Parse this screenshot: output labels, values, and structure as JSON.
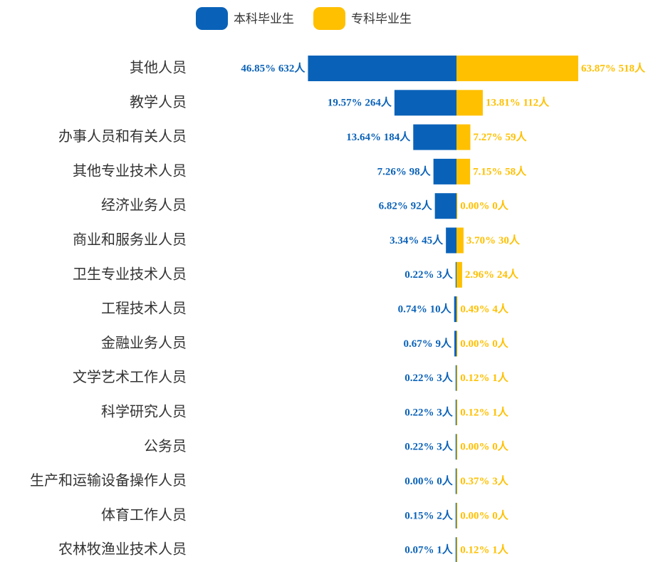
{
  "chart_data": {
    "type": "butterfly",
    "categories": [
      "其他人员",
      "教学人员",
      "办事人员和有关人员",
      "其他专业技术人员",
      "经济业务人员",
      "商业和服务业人员",
      "卫生专业技术人员",
      "工程技术人员",
      "金融业务人员",
      "文学艺术工作人员",
      "科学研究人员",
      "公务员",
      "生产和运输设备操作人员",
      "体育工作人员",
      "农林牧渔业技术人员"
    ],
    "series": [
      {
        "name": "本科毕业生",
        "color": "#0a62b8",
        "values": [
          632,
          264,
          184,
          98,
          92,
          45,
          3,
          10,
          9,
          3,
          3,
          3,
          0,
          2,
          1
        ],
        "value_labels": [
          "46.85% 632人",
          "19.57% 264人",
          "13.64% 184人",
          "7.26% 98人",
          "6.82% 92人",
          "3.34% 45人",
          "0.22% 3人",
          "0.74% 10人",
          "0.67% 9人",
          "0.22% 3人",
          "0.22% 3人",
          "0.22% 3人",
          "0.00% 0人",
          "0.15% 2人",
          "0.07% 1人"
        ]
      },
      {
        "name": "专科毕业生",
        "color": "#ffc000",
        "values": [
          518,
          112,
          59,
          58,
          0,
          30,
          24,
          4,
          0,
          1,
          1,
          0,
          3,
          0,
          1
        ],
        "value_labels": [
          "63.87% 518人",
          "13.81% 112人",
          "7.27% 59人",
          "7.15% 58人",
          "0.00% 0人",
          "3.70% 30人",
          "2.96% 24人",
          "0.49% 4人",
          "0.00% 0人",
          "0.12% 1人",
          "0.12% 1人",
          "0.00% 0人",
          "0.37% 3人",
          "0.00% 0人",
          "0.12% 1人"
        ]
      }
    ]
  }
}
